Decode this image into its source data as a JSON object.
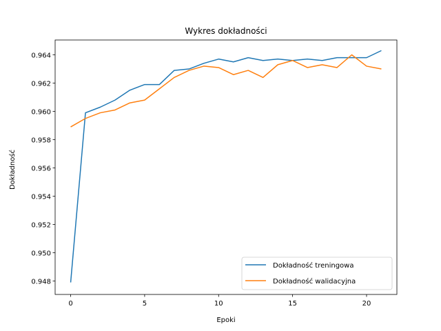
{
  "chart_data": {
    "type": "line",
    "title": "Wykres dokładności",
    "xlabel": "Epoki",
    "ylabel": "Dokładność",
    "xlim": [
      -1.05,
      22.05
    ],
    "ylim": [
      0.94705,
      0.96505
    ],
    "xticks": [
      0,
      5,
      10,
      15,
      20
    ],
    "yticks": [
      0.948,
      0.95,
      0.952,
      0.954,
      0.956,
      0.958,
      0.96,
      0.962,
      0.964
    ],
    "grid": false,
    "legend_position": "lower-right",
    "x": [
      0,
      1,
      2,
      3,
      4,
      5,
      6,
      7,
      8,
      9,
      10,
      11,
      12,
      13,
      14,
      15,
      16,
      17,
      18,
      19,
      20,
      21
    ],
    "series": [
      {
        "name": "Dokładność treningowa",
        "color": "#1f77b4",
        "values": [
          0.9479,
          0.9599,
          0.9603,
          0.9608,
          0.9615,
          0.9619,
          0.9619,
          0.9629,
          0.963,
          0.9634,
          0.9637,
          0.9635,
          0.9638,
          0.9636,
          0.9637,
          0.9636,
          0.9637,
          0.9636,
          0.9638,
          0.9638,
          0.9638,
          0.9643
        ]
      },
      {
        "name": "Dokładność walidacyjna",
        "color": "#ff7f0e",
        "values": [
          0.9589,
          0.9595,
          0.9599,
          0.9601,
          0.9606,
          0.9608,
          0.9616,
          0.9624,
          0.9629,
          0.9632,
          0.9631,
          0.9626,
          0.9629,
          0.9624,
          0.9633,
          0.9636,
          0.9631,
          0.9633,
          0.9631,
          0.964,
          0.9632,
          0.963
        ]
      }
    ]
  }
}
